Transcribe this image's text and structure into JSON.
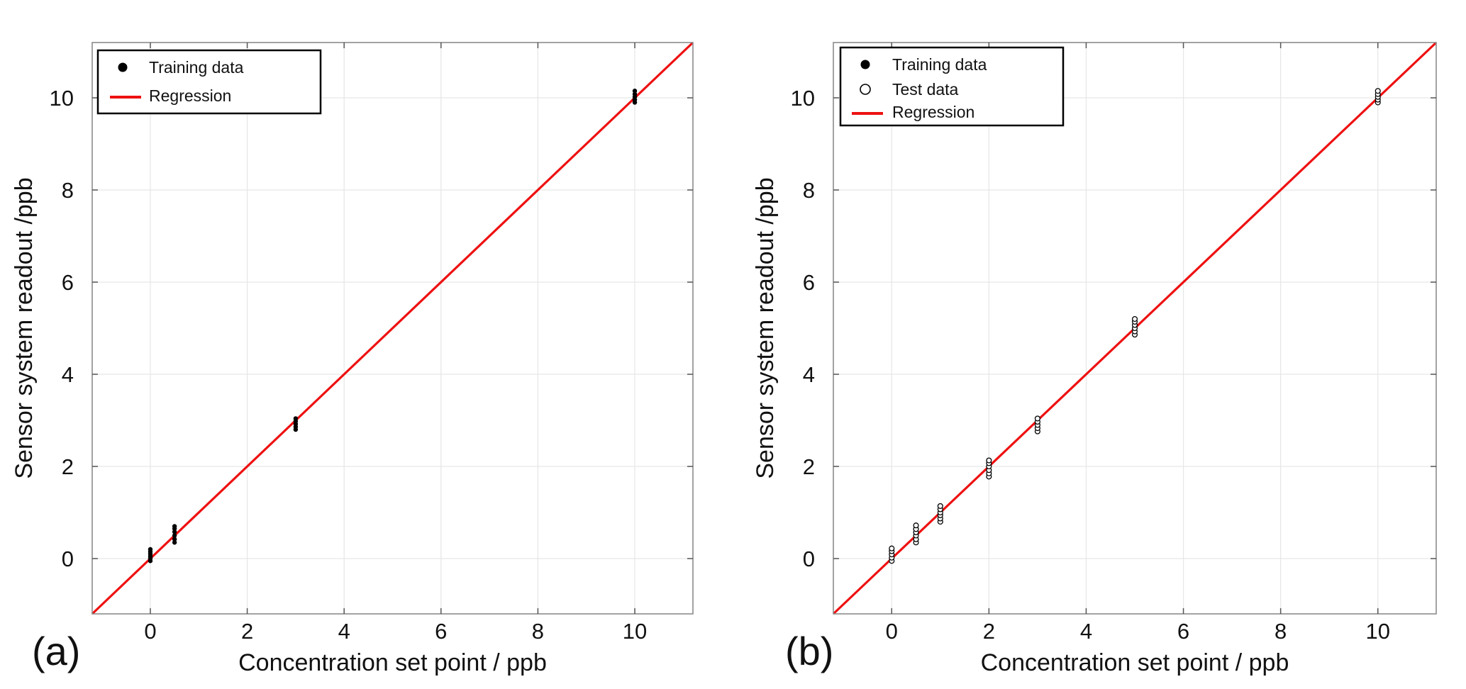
{
  "figure": {
    "panel_labels": [
      "(a)",
      "(b)"
    ]
  },
  "chart_data": [
    {
      "type": "scatter",
      "panel": "(a)",
      "xlabel": "Concentration set point / ppb",
      "ylabel": "Sensor system readout /ppb",
      "xlim": [
        -1.2,
        11.2
      ],
      "ylim": [
        -1.2,
        11.2
      ],
      "xticks": [
        0,
        2,
        4,
        6,
        8,
        10
      ],
      "yticks": [
        0,
        2,
        4,
        6,
        8,
        10
      ],
      "grid": true,
      "legend_position": "top-left",
      "legend": [
        {
          "label": "Training data",
          "marker": "filled-circle"
        },
        {
          "label": "Regression",
          "marker": "line"
        }
      ],
      "series": [
        {
          "name": "Training data",
          "color": "#000000",
          "marker": "filled-circle",
          "groups": [
            {
              "x": 0,
              "y": [
                -0.05,
                0.0,
                0.05,
                0.1,
                0.15,
                0.2
              ]
            },
            {
              "x": 0.5,
              "y": [
                0.35,
                0.42,
                0.5,
                0.58,
                0.65,
                0.7
              ]
            },
            {
              "x": 3,
              "y": [
                2.8,
                2.86,
                2.92,
                2.98,
                3.04
              ]
            },
            {
              "x": 10,
              "y": [
                9.9,
                9.96,
                10.02,
                10.08,
                10.15
              ]
            }
          ]
        },
        {
          "name": "Regression",
          "color": "#ee1111",
          "type": "line",
          "x": [
            -1.2,
            11.2
          ],
          "y": [
            -1.2,
            11.2
          ]
        }
      ]
    },
    {
      "type": "scatter",
      "panel": "(b)",
      "xlabel": "Concentration set point / ppb",
      "ylabel": "Sensor system readout /ppb",
      "xlim": [
        -1.2,
        11.2
      ],
      "ylim": [
        -1.2,
        11.2
      ],
      "xticks": [
        0,
        2,
        4,
        6,
        8,
        10
      ],
      "yticks": [
        0,
        2,
        4,
        6,
        8,
        10
      ],
      "grid": true,
      "legend_position": "top-left",
      "legend": [
        {
          "label": "Training data",
          "marker": "filled-circle"
        },
        {
          "label": "Test data",
          "marker": "open-circle"
        },
        {
          "label": "Regression",
          "marker": "line"
        }
      ],
      "series": [
        {
          "name": "Training data",
          "color": "#000000",
          "marker": "filled-circle",
          "groups": [
            {
              "x": 0,
              "y": [
                0.0,
                0.06,
                0.12
              ]
            },
            {
              "x": 0.5,
              "y": [
                0.45,
                0.52,
                0.58
              ]
            },
            {
              "x": 3,
              "y": [
                2.9,
                2.96,
                3.02
              ]
            },
            {
              "x": 10,
              "y": [
                9.98,
                10.04,
                10.1
              ]
            }
          ]
        },
        {
          "name": "Test data",
          "color": "#000000",
          "marker": "open-circle",
          "groups": [
            {
              "x": 0,
              "y": [
                -0.05,
                0.02,
                0.09,
                0.16,
                0.22
              ]
            },
            {
              "x": 0.5,
              "y": [
                0.35,
                0.42,
                0.5,
                0.57,
                0.64,
                0.72
              ]
            },
            {
              "x": 1,
              "y": [
                0.8,
                0.87,
                0.94,
                1.0,
                1.07,
                1.14
              ]
            },
            {
              "x": 2,
              "y": [
                1.78,
                1.85,
                1.92,
                2.0,
                2.07,
                2.13
              ]
            },
            {
              "x": 3,
              "y": [
                2.76,
                2.83,
                2.9,
                2.97,
                3.04
              ]
            },
            {
              "x": 5,
              "y": [
                4.86,
                4.93,
                5.0,
                5.07,
                5.14,
                5.2
              ]
            },
            {
              "x": 10,
              "y": [
                9.9,
                9.96,
                10.02,
                10.08,
                10.15
              ]
            }
          ]
        },
        {
          "name": "Regression",
          "color": "#ee1111",
          "type": "line",
          "x": [
            -1.2,
            11.2
          ],
          "y": [
            -1.2,
            11.2
          ]
        }
      ]
    }
  ]
}
